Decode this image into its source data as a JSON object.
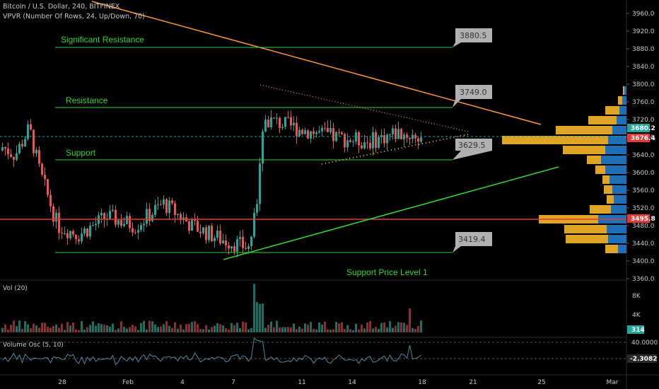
{
  "header": {
    "symbol": "Bitcoin / U.S. Dollar, 240, BITFINEX",
    "indicator": "VPVR (Number Of Rows, 24, Up/Down, 70)"
  },
  "annotations": {
    "significant_resistance": "Significant Resistance",
    "resistance": "Resistance",
    "support": "Support",
    "support_level_1": "Support Price Level 1"
  },
  "callouts": [
    "3880.5",
    "3749.0",
    "3629.5",
    "3419.4"
  ],
  "price_axis": {
    "ticks": [
      "3960.0",
      "3920.0",
      "3880.0",
      "3840.0",
      "3800.0",
      "3760.0",
      "3720.0",
      "3680.0",
      "3640.0",
      "3600.0",
      "3560.0",
      "3520.0",
      "3480.0",
      "3440.0",
      "3400.0",
      "3360.0"
    ],
    "tags": [
      {
        "text": "3680.2",
        "color": "#26a69a"
      },
      {
        "text": "3676.4",
        "color": "#e53935"
      },
      {
        "text": "3495.8",
        "color": "#e53935"
      }
    ]
  },
  "volume_pane": {
    "title": "Vol (20)",
    "ticks": [
      "8K",
      "4K"
    ],
    "tag": "314",
    "tag_color": "#26a69a"
  },
  "osc_pane": {
    "title": "Volume Osc (5, 10)",
    "ticks": [
      "40.0000"
    ],
    "tag": "-2.3082"
  },
  "time_axis": [
    "28",
    "Feb",
    "4",
    "7",
    "11",
    "14",
    "18",
    "21",
    "25",
    "Mar"
  ],
  "colors": {
    "up": "#26a69a",
    "down": "#ef5350",
    "green_line": "#31d631",
    "orange_line": "#ff9833",
    "red_line": "#e53935",
    "vpvr_up": "#1e6fb5",
    "vpvr_down": "#e0a526"
  },
  "chart_data": {
    "type": "candlestick",
    "y_range": [
      3360,
      3980
    ],
    "price_levels": [
      {
        "label": "Significant Resistance",
        "value": 3880.5
      },
      {
        "label": "Resistance",
        "value": 3749.0
      },
      {
        "label": "Support",
        "value": 3629.5
      },
      {
        "label": "Support Price Level 1",
        "value": 3419.4
      }
    ],
    "series": [
      {
        "name": "close",
        "values": [
          3640,
          3660,
          3620,
          3600,
          3680,
          3700,
          3650,
          3560,
          3520,
          3470,
          3500,
          3480,
          3460,
          3500,
          3530,
          3510,
          3490,
          3520,
          3540,
          3500,
          3480,
          3510,
          3500,
          3470,
          3440,
          3430,
          3420,
          3480,
          3700,
          3730,
          3700,
          3720,
          3690,
          3700,
          3680,
          3660,
          3690,
          3680,
          3700,
          3690,
          3680,
          3676
        ]
      }
    ]
  }
}
